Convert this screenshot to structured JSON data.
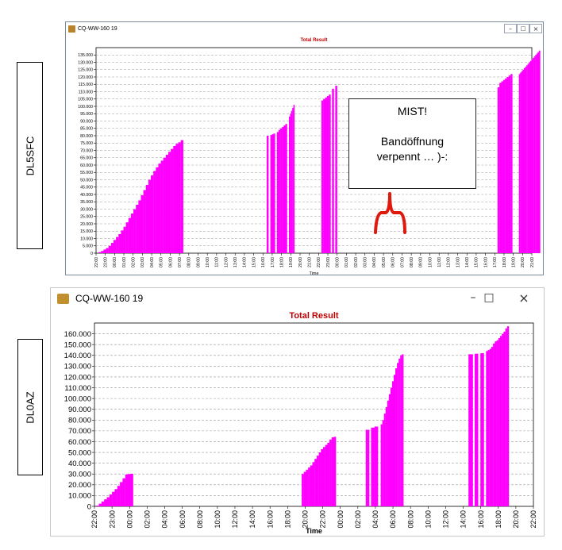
{
  "labels": {
    "top": "DL5SFC",
    "bottom": "DL0AZ"
  },
  "windows": [
    {
      "title": "CQ-WW-160 19",
      "controls": [
        "minimize-icon",
        "maximize-icon",
        "close-icon"
      ]
    },
    {
      "title": "CQ-WW-160 19",
      "controls": [
        "minimize-icon",
        "maximize-icon",
        "close-icon"
      ]
    }
  ],
  "annotation": {
    "title": "MIST!",
    "line1": "Bandöffnung",
    "line2": "verpennt … )-:"
  },
  "colors": {
    "bar": "#ff00ff",
    "chart_title": "#c00000",
    "bracket": "#e0190e"
  },
  "chart_data": [
    {
      "type": "bar",
      "title": "Total Result",
      "xlabel": "Time",
      "ylabel": "",
      "grid": true,
      "ylim": [
        0,
        140000
      ],
      "yticks": [
        "0",
        "5.000",
        "10.000",
        "15.000",
        "20.000",
        "25.000",
        "30.000",
        "35.000",
        "40.000",
        "45.000",
        "50.000",
        "55.000",
        "60.000",
        "65.000",
        "70.000",
        "75.000",
        "80.000",
        "85.000",
        "90.000",
        "95.000",
        "100.000",
        "105.000",
        "110.000",
        "115.000",
        "120.000",
        "125.000",
        "130.000",
        "135.000"
      ],
      "xticks": [
        "22:00",
        "23:00",
        "00:00",
        "01:00",
        "02:00",
        "03:00",
        "04:00",
        "05:00",
        "06:00",
        "07:00",
        "08:00",
        "09:00",
        "10:00",
        "11:00",
        "12:00",
        "13:00",
        "14:00",
        "15:00",
        "16:00",
        "17:00",
        "18:00",
        "19:00",
        "20:00",
        "21:00",
        "22:00",
        "23:00",
        "00:00",
        "01:00",
        "02:00",
        "03:00",
        "04:00",
        "05:00",
        "06:00",
        "07:00",
        "08:00",
        "09:00",
        "10:00",
        "11:00",
        "12:00",
        "13:00",
        "14:00",
        "15:00",
        "16:00",
        "17:00",
        "18:00",
        "19:00",
        "20:00",
        "21:00"
      ],
      "segments": [
        {
          "from": 0.0,
          "to": 9.4,
          "values": [
            0,
            700,
            1500,
            2500,
            3500,
            5000,
            7000,
            9000,
            11000,
            13000,
            15500,
            18000,
            21000,
            24000,
            27000,
            30000,
            33000,
            36000,
            39500,
            43000,
            46500,
            50000,
            53000,
            56000,
            58500,
            61000,
            63000,
            65000,
            67000,
            69000,
            71000,
            73000,
            74500,
            75500,
            77000
          ]
        },
        {
          "from": 18.4,
          "to": 18.6,
          "values": [
            80000
          ]
        },
        {
          "from": 18.8,
          "to": 19.3,
          "values": [
            80500,
            81000,
            81500
          ]
        },
        {
          "from": 19.5,
          "to": 20.6,
          "values": [
            82500,
            84000,
            85000,
            86000,
            87000,
            88000
          ]
        },
        {
          "from": 20.8,
          "to": 21.4,
          "values": [
            93000,
            95000,
            97000,
            99000,
            101000
          ]
        },
        {
          "from": 24.3,
          "to": 25.3,
          "values": [
            104000,
            105000,
            106000,
            107000,
            108000
          ]
        },
        {
          "from": 25.45,
          "to": 25.65,
          "values": [
            112000
          ]
        },
        {
          "from": 25.8,
          "to": 26.0,
          "values": [
            114000
          ]
        },
        {
          "from": 43.3,
          "to": 44.9,
          "values": [
            113000,
            116000,
            117000,
            118000,
            119000,
            120000,
            121000,
            122000
          ]
        },
        {
          "from": 45.6,
          "to": 47.9,
          "values": [
            122000,
            123000,
            124000,
            125000,
            126000,
            127000,
            128000,
            129000,
            130000,
            131000,
            132000,
            133000,
            134000,
            135000,
            136000,
            137000,
            138000
          ]
        }
      ]
    },
    {
      "type": "bar",
      "title": "Total Result",
      "xlabel": "Time",
      "ylabel": "",
      "grid": true,
      "ylim": [
        0,
        170000
      ],
      "yticks": [
        "0",
        "10.000",
        "20.000",
        "30.000",
        "40.000",
        "50.000",
        "60.000",
        "70.000",
        "80.000",
        "90.000",
        "100.000",
        "110.000",
        "120.000",
        "130.000",
        "140.000",
        "150.000",
        "160.000"
      ],
      "xticks": [
        "22:00",
        "23:00",
        "00:00",
        "02:00",
        "04:00",
        "06:00",
        "08:00",
        "10:00",
        "12:00",
        "14:00",
        "16:00",
        "18:00",
        "20:00",
        "22:00",
        "00:00",
        "02:00",
        "04:00",
        "06:00",
        "08:00",
        "10:00",
        "12:00",
        "14:00",
        "16:00",
        "18:00",
        "20:00",
        "22:00"
      ],
      "segments": [
        {
          "from": 0.1,
          "to": 2.2,
          "values": [
            700,
            2500,
            4500,
            6500,
            8500,
            11000,
            13500,
            16000,
            19000,
            22500,
            26000,
            29500,
            30000,
            30200
          ]
        },
        {
          "from": 11.8,
          "to": 13.75,
          "values": [
            30000,
            32000,
            34000,
            36000,
            38000,
            41000,
            44000,
            47000,
            50000,
            53000,
            55000,
            57000,
            59000,
            62000,
            64000,
            64500
          ]
        },
        {
          "from": 15.45,
          "to": 15.65,
          "values": [
            71000
          ]
        },
        {
          "from": 15.75,
          "to": 16.15,
          "values": [
            73000,
            74000
          ]
        },
        {
          "from": 16.3,
          "to": 17.6,
          "values": [
            76000,
            80000,
            86000,
            92000,
            98000,
            104000,
            110000,
            116000,
            122000,
            128000,
            133000,
            137000,
            140000,
            141000
          ]
        },
        {
          "from": 21.3,
          "to": 21.55,
          "values": [
            141000
          ]
        },
        {
          "from": 21.65,
          "to": 21.85,
          "values": [
            141500
          ]
        },
        {
          "from": 21.98,
          "to": 22.18,
          "values": [
            142000
          ]
        },
        {
          "from": 22.3,
          "to": 23.6,
          "values": [
            144000,
            145000,
            146000,
            148000,
            151000,
            153000,
            154000,
            156000,
            158000,
            160000,
            162000,
            165000,
            167000
          ]
        }
      ]
    }
  ]
}
